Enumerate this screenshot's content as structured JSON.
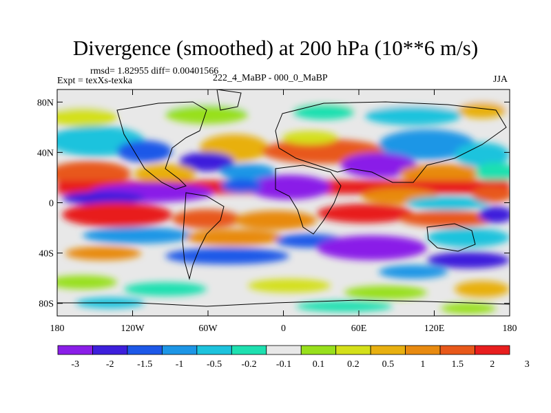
{
  "header": {
    "title": "Divergence (smoothed) at 200 hPa (10**6 m/s)",
    "stats": "rmsd= 1.82955 diff= 0.00401566",
    "experiment": "Expt = texXs-texka",
    "case": "222_4_MaBP - 000_0_MaBP",
    "season": "JJA"
  },
  "axes": {
    "lat_labels": [
      "80N",
      "40N",
      "0",
      "40S",
      "80S"
    ],
    "lat_values": [
      80,
      40,
      0,
      -40,
      -80
    ],
    "lon_labels": [
      "180",
      "120W",
      "60W",
      "0",
      "60E",
      "120E",
      "180"
    ],
    "lon_values": [
      -180,
      -120,
      -60,
      0,
      60,
      120,
      180
    ],
    "lat_range": [
      -90,
      90
    ],
    "lon_range": [
      -180,
      180
    ]
  },
  "colorbar": {
    "labels": [
      "-3",
      "-2",
      "-1.5",
      "-1",
      "-0.5",
      "-0.2",
      "-0.1",
      "0.1",
      "0.2",
      "0.5",
      "1",
      "1.5",
      "2",
      "3"
    ],
    "colors": [
      "#8a1ee8",
      "#3d1fdc",
      "#1d58e8",
      "#1d96e6",
      "#1dc3dd",
      "#1ee0b0",
      "#e8e8e8",
      "#98e01c",
      "#d4e01a",
      "#e8b010",
      "#e88a10",
      "#e8581a",
      "#e81e1e"
    ]
  },
  "chart_data": {
    "type": "heatmap",
    "title": "Divergence (smoothed) at 200 hPa (10**6 m/s)",
    "x_axis": "longitude",
    "y_axis": "latitude",
    "levels": [
      -3,
      -2,
      -1.5,
      -1,
      -0.5,
      -0.2,
      -0.1,
      0.1,
      0.2,
      0.5,
      1,
      1.5,
      2,
      3
    ],
    "legend": "bottom"
  }
}
